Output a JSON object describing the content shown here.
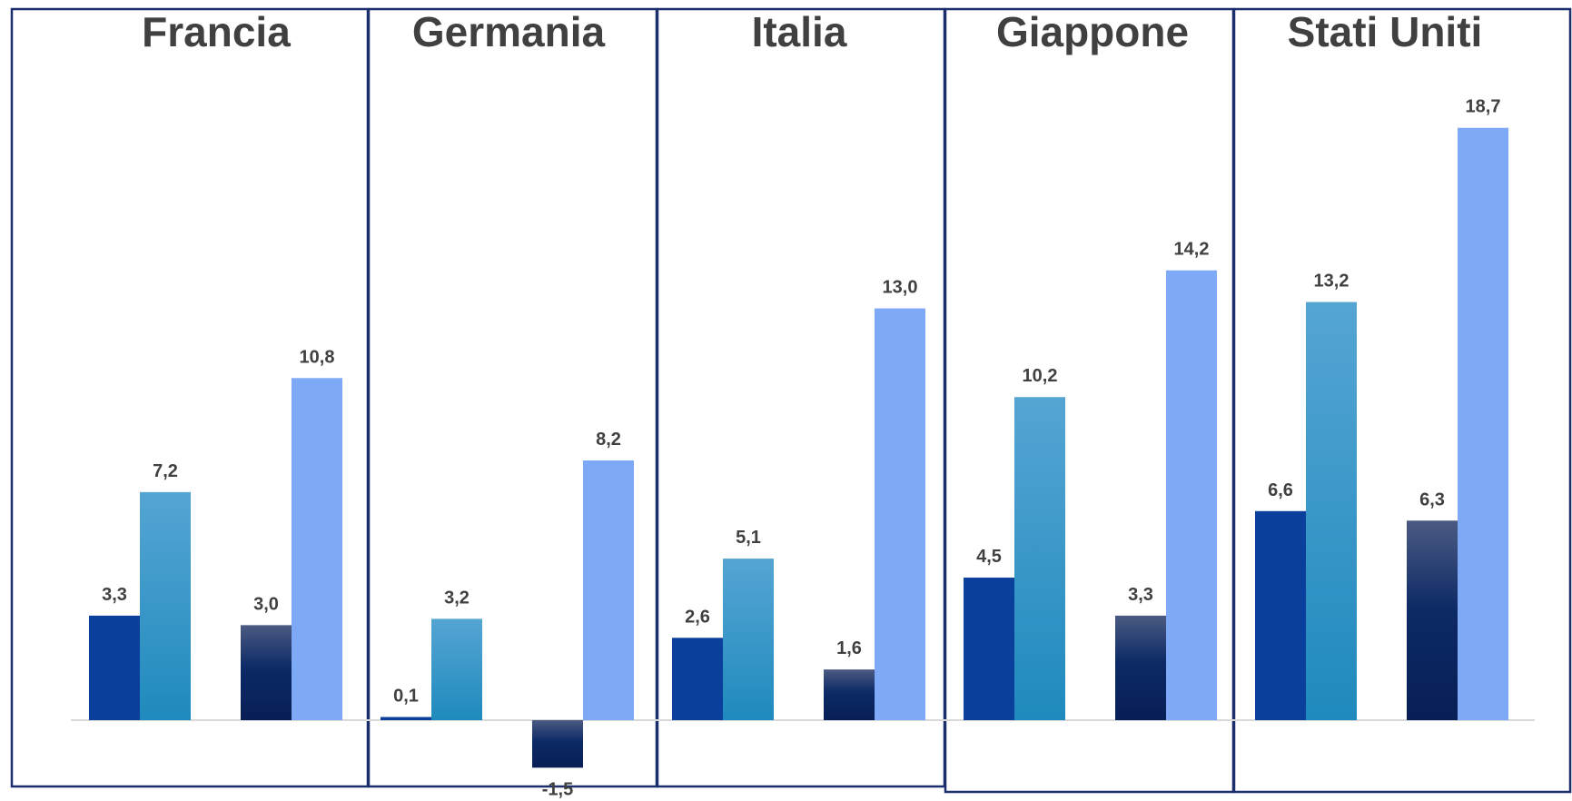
{
  "chart_data": {
    "type": "bar",
    "categories": [
      "Francia",
      "Germania",
      "Italia",
      "Giappone",
      "Stati Uniti"
    ],
    "bar_groups": [
      {
        "values": [
          3.3,
          0.1,
          2.6,
          4.5,
          6.6
        ],
        "labels": [
          "3,3",
          "0,1",
          "2,6",
          "4,5",
          "6,6"
        ],
        "color": "#0a3f9b"
      },
      {
        "values": [
          7.2,
          3.2,
          5.1,
          10.2,
          13.2
        ],
        "labels": [
          "7,2",
          "3,2",
          "5,1",
          "10,2",
          "13,2"
        ],
        "color": "#2d95c8"
      },
      {
        "values": [
          3.0,
          -1.5,
          1.6,
          3.3,
          6.3
        ],
        "labels": [
          "3,0",
          "-1,5",
          "1,6",
          "3,3",
          "6,3"
        ],
        "color": "#0b2460"
      },
      {
        "values": [
          10.8,
          8.2,
          13.0,
          14.2,
          18.7
        ],
        "labels": [
          "10,8",
          "8,2",
          "13,0",
          "14,2",
          "18,7"
        ],
        "color": "#7ea9f6"
      }
    ],
    "ylim": [
      -1.5,
      18.7
    ],
    "grid": false,
    "legend": "none",
    "colors": {
      "frame": "#1a2f6b",
      "baseline": "#d9d9d9",
      "text": "#404040"
    }
  }
}
